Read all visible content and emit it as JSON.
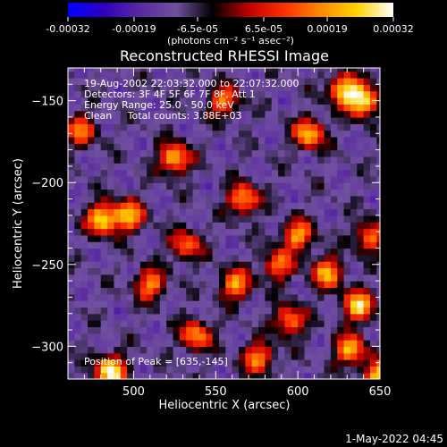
{
  "chart_data": {
    "type": "heatmap",
    "title": "Reconstructed RHESSI Image",
    "xlabel": "Heliocentric X (arcsec)",
    "ylabel": "Heliocentric Y (arcsec)",
    "xlim": [
      460,
      650
    ],
    "ylim": [
      -320,
      -130
    ],
    "x_ticks": [
      500,
      550,
      600,
      650
    ],
    "y_ticks": [
      -150,
      -200,
      -250,
      -300
    ],
    "colorbar": {
      "range": [
        -0.00032,
        0.00032
      ],
      "tick_values": [
        -0.00032,
        -0.00019,
        -6.5e-05,
        6.5e-05,
        0.00019,
        0.00032
      ],
      "tick_labels": [
        "-0.00032",
        "-0.00019",
        "-6.5e-05",
        "6.5e-05",
        "0.00019",
        "0.00032"
      ],
      "unit_label": "(photons cm⁻² s⁻¹ asec⁻²)"
    },
    "colormap": [
      "#0000ff",
      "#3000c0",
      "#5a2aa0",
      "#7050a0",
      "#000000",
      "#c00000",
      "#ff3000",
      "#ff8a00",
      "#ffd400",
      "#ffffff"
    ],
    "annotations": [
      "19-Aug-2002 22:03:32.000 to 22:07:32.000",
      "Detectors: 3F 4F 5F 6F 7F 8F, Att 1",
      "Energy Range: 25.0 - 50.0 keV",
      "Clean     Total counts: 3.88E+03"
    ],
    "peak_label": "Position of Peak = [635,-145]",
    "sources": [
      {
        "x": 486,
        "y": -315,
        "intensity": 0.00032
      },
      {
        "x": 640,
        "y": -150,
        "intensity": 0.0003
      },
      {
        "x": 628,
        "y": -143,
        "intensity": 0.00026
      },
      {
        "x": 525,
        "y": -185,
        "intensity": 0.00024
      },
      {
        "x": 481,
        "y": -222,
        "intensity": 0.00027
      },
      {
        "x": 497,
        "y": -220,
        "intensity": 0.00022
      },
      {
        "x": 607,
        "y": -170,
        "intensity": 0.00023
      },
      {
        "x": 600,
        "y": -232,
        "intensity": 0.0002
      },
      {
        "x": 567,
        "y": -210,
        "intensity": 0.00021
      },
      {
        "x": 637,
        "y": -275,
        "intensity": 0.00026
      },
      {
        "x": 632,
        "y": -302,
        "intensity": 0.00022
      },
      {
        "x": 538,
        "y": -293,
        "intensity": 0.00019
      },
      {
        "x": 562,
        "y": -262,
        "intensity": 0.0002
      },
      {
        "x": 510,
        "y": -262,
        "intensity": 0.00018
      },
      {
        "x": 618,
        "y": -255,
        "intensity": 0.00021
      },
      {
        "x": 644,
        "y": -233,
        "intensity": 0.00017
      },
      {
        "x": 576,
        "y": -307,
        "intensity": 0.00018
      },
      {
        "x": 650,
        "y": -318,
        "intensity": 0.00026
      },
      {
        "x": 555,
        "y": -150,
        "intensity": 0.00016
      },
      {
        "x": 588,
        "y": -250,
        "intensity": 0.00016
      },
      {
        "x": 468,
        "y": -168,
        "intensity": 0.00015
      },
      {
        "x": 532,
        "y": -238,
        "intensity": 0.00015
      },
      {
        "x": 595,
        "y": -284,
        "intensity": 0.00018
      }
    ]
  },
  "footer": {
    "timestamp": "1-May-2022 04:45"
  }
}
